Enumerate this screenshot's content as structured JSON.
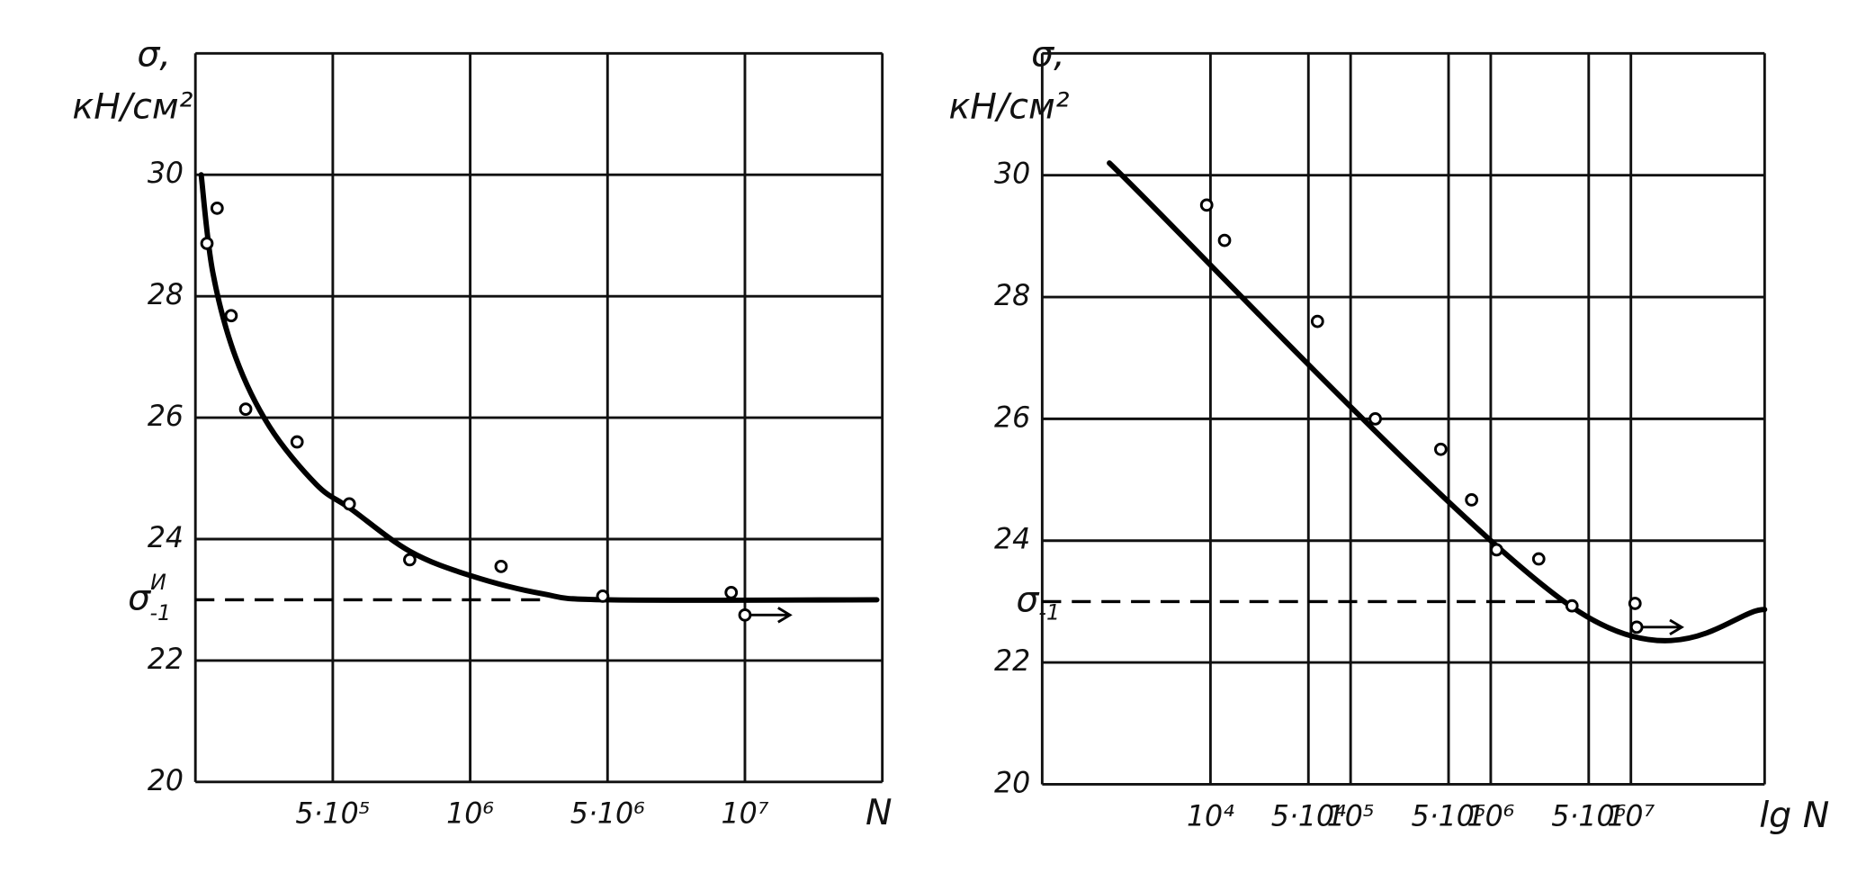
{
  "chart_data": [
    {
      "type": "line",
      "ylabel": [
        "σ,",
        "кН/см²"
      ],
      "xlabel": "N",
      "ylim": [
        20,
        32
      ],
      "yticks": [
        20,
        22,
        24,
        26,
        28,
        30
      ],
      "xscale": "tick-spaced",
      "xlim": [
        0,
        15000000
      ],
      "xticks": [
        {
          "value": 500000,
          "label": "5·10⁵"
        },
        {
          "value": 1000000,
          "label": "10⁶"
        },
        {
          "value": 5000000,
          "label": "5·10⁶"
        },
        {
          "value": 10000000,
          "label": "10⁷"
        }
      ],
      "grid": true,
      "points": {
        "x": [
          42000,
          79000,
          130000,
          183000,
          370000,
          560000,
          780000,
          1900000,
          4860000,
          9500000
        ],
        "y": [
          28.87,
          29.45,
          27.68,
          26.14,
          25.6,
          24.58,
          23.66,
          23.55,
          23.06,
          23.12
        ]
      },
      "runout": {
        "x": [
          10000000
        ],
        "y": [
          22.75
        ]
      },
      "fit": {
        "x": [
          21000,
          63000,
          146000,
          270000,
          440000,
          565000,
          780000,
          1000000,
          3100000,
          5000000,
          14800000
        ],
        "y": [
          30.0,
          28.4,
          27.0,
          25.85,
          24.9,
          24.5,
          23.8,
          23.4,
          23.1,
          23.0,
          23.0
        ]
      },
      "limit": 23,
      "limit_label": {
        "main": "σ",
        "sub": "-1",
        "sup": "И"
      }
    },
    {
      "type": "line",
      "ylabel": [
        "σ,",
        "кН/см²"
      ],
      "xlabel": "lg N",
      "ylim": [
        20,
        32
      ],
      "yticks": [
        20,
        22,
        24,
        26,
        28,
        30
      ],
      "xscale": "log",
      "xlim": [
        630,
        90000000
      ],
      "xticks": [
        {
          "value": 10000,
          "label": "10⁴"
        },
        {
          "value": 50000,
          "label": "5·10⁴"
        },
        {
          "value": 100000,
          "label": "10⁵"
        },
        {
          "value": 500000,
          "label": "5·10⁵"
        },
        {
          "value": 1000000,
          "label": "10⁶"
        },
        {
          "value": 5000000,
          "label": "5·10⁶"
        },
        {
          "value": 10000000,
          "label": "10⁷"
        }
      ],
      "grid": true,
      "points": {
        "x": [
          9400,
          12600,
          58000,
          150000,
          440000,
          730000,
          1100000,
          2200000,
          3800000,
          10700000
        ],
        "y": [
          29.51,
          28.93,
          27.6,
          26.0,
          25.5,
          24.67,
          23.85,
          23.7,
          22.93,
          22.97
        ]
      },
      "runout": {
        "x": [
          11000000
        ],
        "y": [
          22.58
        ]
      },
      "fit": {
        "x": [
          1900,
          3800000,
          90000000
        ],
        "y": [
          30.2,
          22.91,
          22.87
        ]
      },
      "limit": 23,
      "limit_label": {
        "main": "σ",
        "sub": "-1"
      }
    }
  ]
}
